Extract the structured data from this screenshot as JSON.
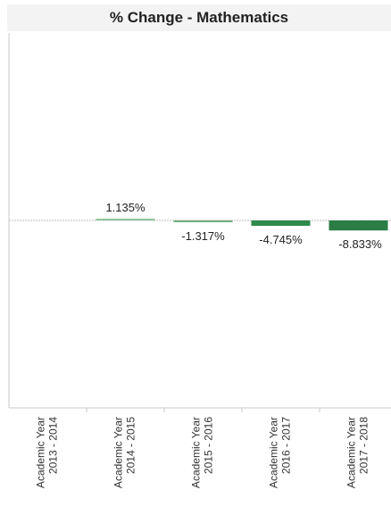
{
  "chart_data": {
    "type": "bar",
    "title": "% Change - Mathematics",
    "categories": [
      [
        "Academic Year",
        "2013 - 2014"
      ],
      [
        "Academic Year",
        "2014 - 2015"
      ],
      [
        "Academic Year",
        "2015 - 2016"
      ],
      [
        "Academic Year",
        "2016 - 2017"
      ],
      [
        "Academic Year",
        "2017 - 2018"
      ]
    ],
    "values": [
      null,
      1.135,
      -1.317,
      -4.745,
      -8.833
    ],
    "data_labels": [
      "",
      "1.135%",
      "-1.317%",
      "-4.745%",
      "-8.833%"
    ],
    "bar_colors": [
      "#6fae7c",
      "#8fc49a",
      "#6fae7c",
      "#2f8a4c",
      "#2a7d45"
    ],
    "baseline_color": "#bbbbbb",
    "ylim": [
      -165,
      165
    ],
    "xlabel": "",
    "ylabel": "",
    "grid": false
  }
}
